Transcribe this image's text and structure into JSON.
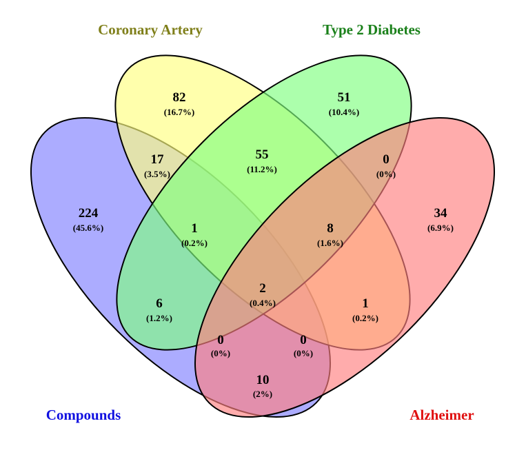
{
  "sets": [
    {
      "key": "compounds",
      "label": "Compounds",
      "color": "#1010E0",
      "fill": "#7F7FFF"
    },
    {
      "key": "coronary",
      "label": "Coronary Artery",
      "color": "#7F7F1A",
      "fill": "#FFFF7F"
    },
    {
      "key": "diabetes",
      "label": "Type 2 Diabetes",
      "color": "#1A801A",
      "fill": "#7FFF7F"
    },
    {
      "key": "alzheimer",
      "label": "Alzheimer",
      "color": "#E01010",
      "fill": "#FF7F7F"
    }
  ],
  "regions": [
    {
      "sets": [
        "compounds"
      ],
      "count": "224",
      "pct": "(45.6%)"
    },
    {
      "sets": [
        "coronary"
      ],
      "count": "82",
      "pct": "(16.7%)"
    },
    {
      "sets": [
        "diabetes"
      ],
      "count": "51",
      "pct": "(10.4%)"
    },
    {
      "sets": [
        "alzheimer"
      ],
      "count": "34",
      "pct": "(6.9%)"
    },
    {
      "sets": [
        "compounds",
        "coronary"
      ],
      "count": "17",
      "pct": "(3.5%)"
    },
    {
      "sets": [
        "coronary",
        "diabetes"
      ],
      "count": "55",
      "pct": "(11.2%)"
    },
    {
      "sets": [
        "diabetes",
        "alzheimer"
      ],
      "count": "0",
      "pct": "(0%)"
    },
    {
      "sets": [
        "compounds",
        "coronary",
        "diabetes"
      ],
      "count": "1",
      "pct": "(0.2%)"
    },
    {
      "sets": [
        "coronary",
        "diabetes",
        "alzheimer"
      ],
      "count": "8",
      "pct": "(1.6%)"
    },
    {
      "sets": [
        "compounds",
        "diabetes"
      ],
      "count": "6",
      "pct": "(1.2%)"
    },
    {
      "sets": [
        "compounds",
        "coronary",
        "diabetes",
        "alzheimer"
      ],
      "count": "2",
      "pct": "(0.4%)"
    },
    {
      "sets": [
        "coronary",
        "alzheimer"
      ],
      "count": "1",
      "pct": "(0.2%)"
    },
    {
      "sets": [
        "compounds",
        "diabetes",
        "alzheimer"
      ],
      "count": "0",
      "pct": "(0%)"
    },
    {
      "sets": [
        "compounds",
        "coronary",
        "alzheimer"
      ],
      "count": "0",
      "pct": "(0%)"
    },
    {
      "sets": [
        "compounds",
        "alzheimer"
      ],
      "count": "10",
      "pct": "(2%)"
    }
  ]
}
